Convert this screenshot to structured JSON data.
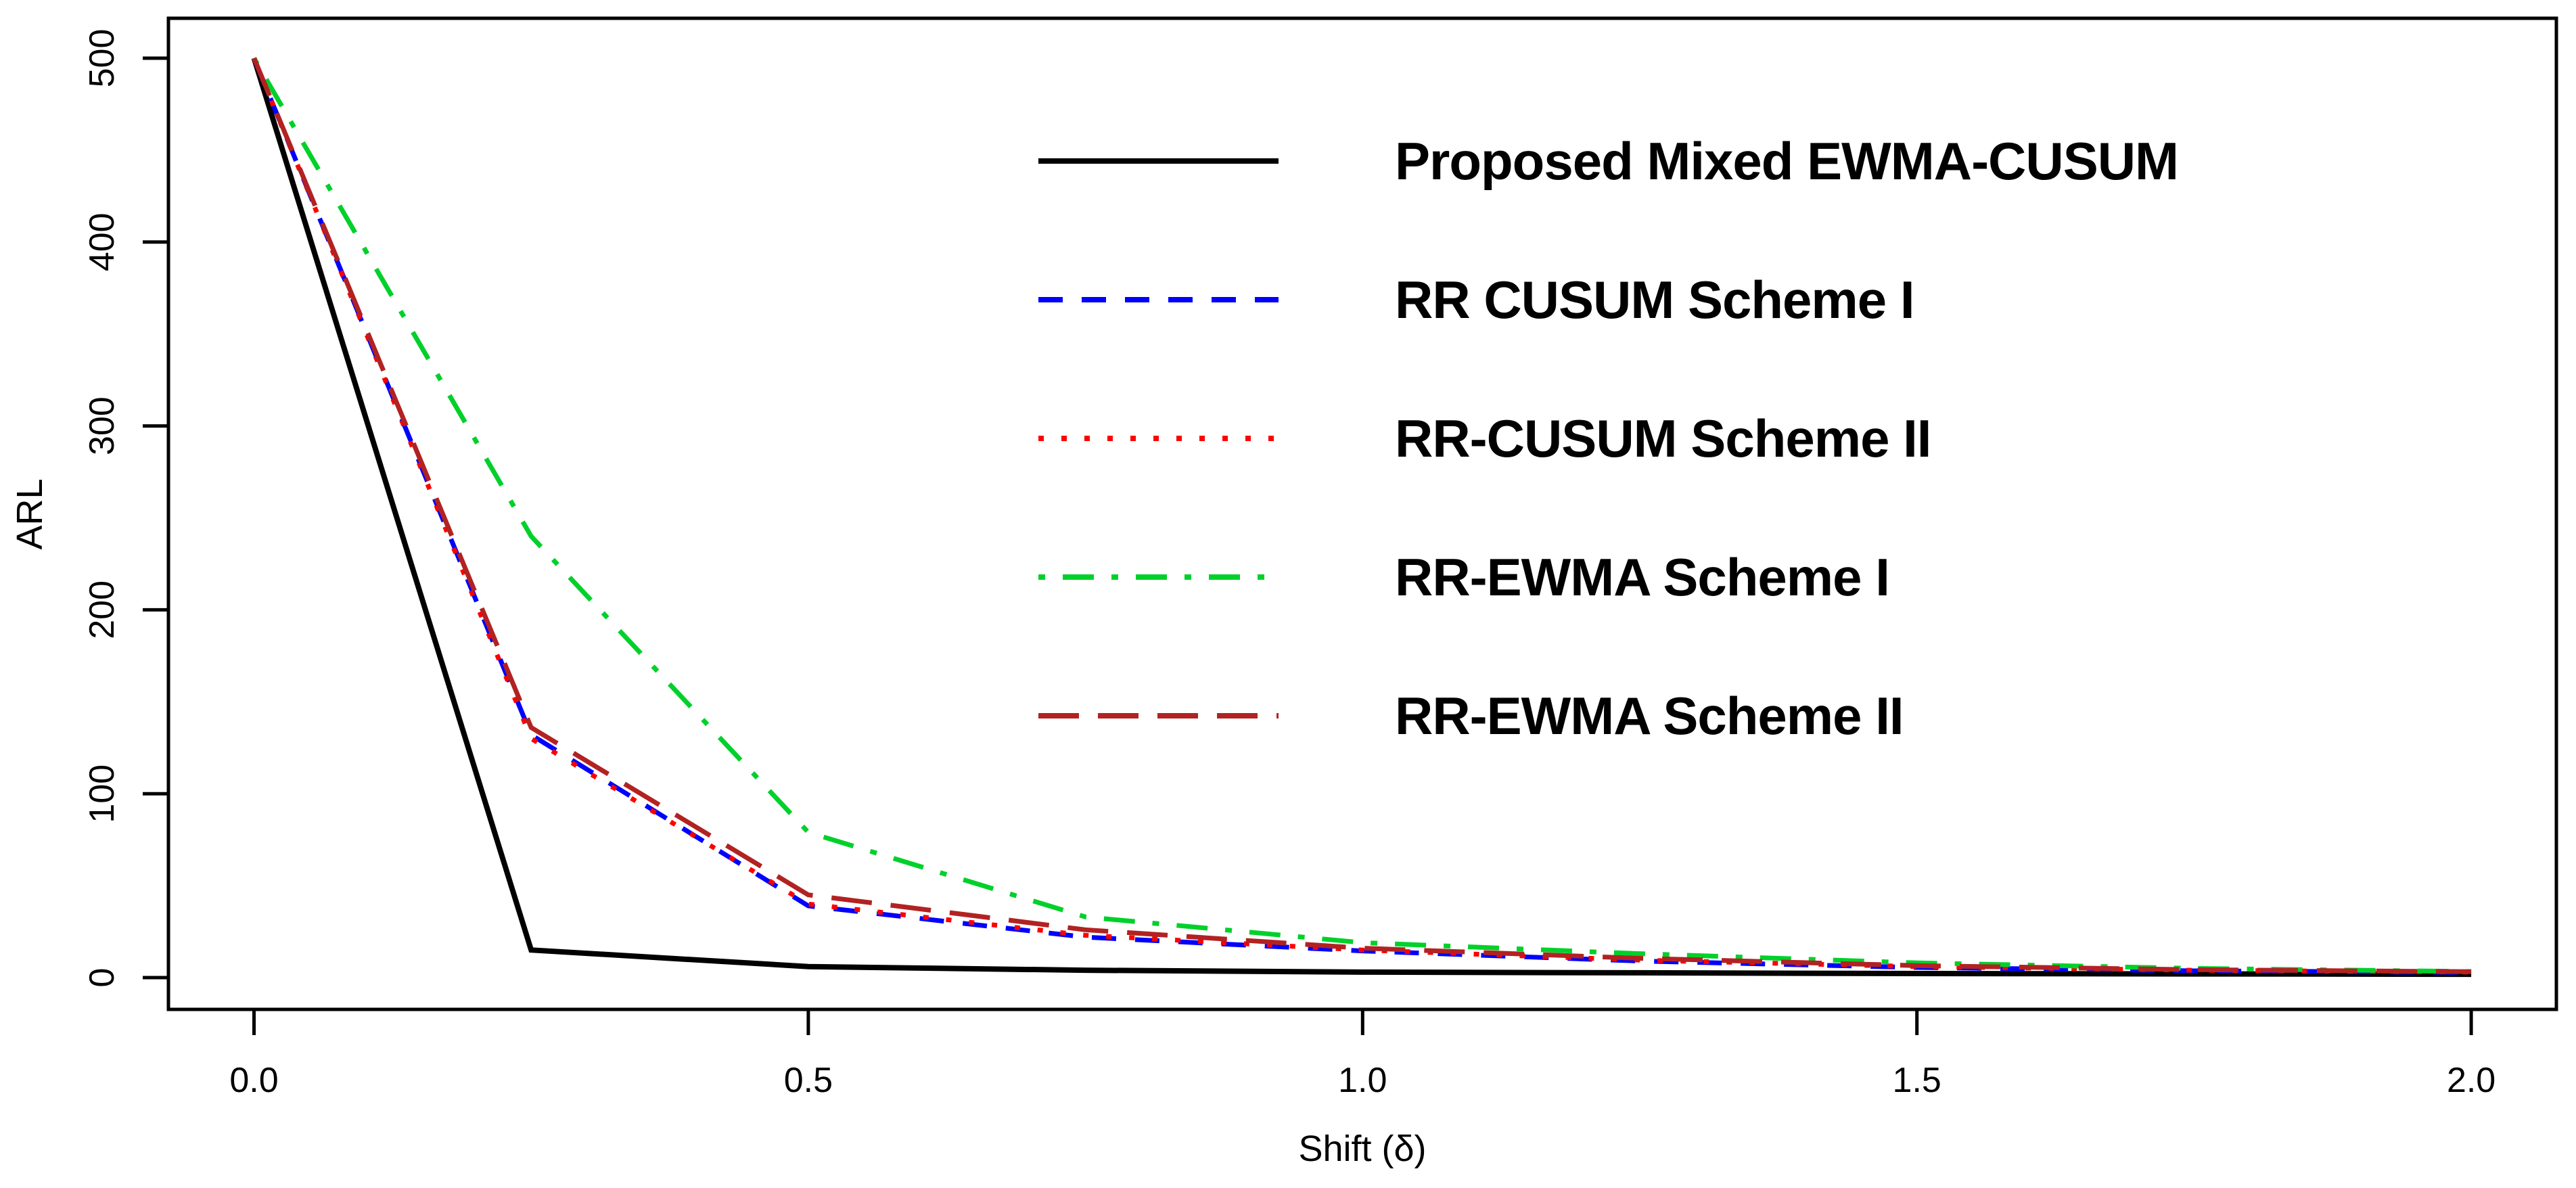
{
  "figure": {
    "background": "#FFFFFF",
    "title": "",
    "xlabel": "Shift (δ)",
    "ylabel": "ARL"
  },
  "chart_data": {
    "type": "line",
    "title": "",
    "xlabel": "Shift (δ)",
    "ylabel": "ARL",
    "xlim": [
      0,
      2
    ],
    "ylim": [
      0,
      500
    ],
    "grid": false,
    "legend_position": "inside top-right, no box",
    "x_tick_labels": [
      "0.0",
      "0.5",
      "1.0",
      "1.5",
      "2.0"
    ],
    "y_tick_labels": [
      "0",
      "100",
      "200",
      "300",
      "400",
      "500"
    ],
    "x": [
      0,
      0.25,
      0.5,
      0.75,
      1.0,
      1.25,
      1.5,
      1.75,
      2.0
    ],
    "series": [
      {
        "name": "Proposed Mixed EWMA-CUSUM",
        "color": "#000000",
        "linestyle": "solid",
        "values": [
          500,
          15,
          6,
          4,
          3,
          2.6,
          2.2,
          2,
          1.8
        ]
      },
      {
        "name": "RR CUSUM Scheme I",
        "color": "#0000FF",
        "linestyle": "dashed",
        "values": [
          500,
          132,
          39,
          22,
          14.5,
          9,
          5.5,
          3.7,
          2.8
        ]
      },
      {
        "name": "RR-CUSUM Scheme II",
        "color": "#FF0000",
        "linestyle": "dotted",
        "values": [
          500,
          130,
          40,
          23,
          15,
          9.5,
          6,
          4,
          3
        ]
      },
      {
        "name": "RR-EWMA Scheme I",
        "color": "#00D02A",
        "linestyle": "dashdot",
        "values": [
          500,
          240,
          79,
          33,
          19,
          13,
          8,
          5,
          3.3
        ]
      },
      {
        "name": "RR-EWMA Scheme II",
        "color": "#B22222",
        "linestyle": "longdash",
        "values": [
          500,
          136,
          45,
          26,
          16,
          10.5,
          6.5,
          4.3,
          3.2
        ]
      }
    ]
  }
}
